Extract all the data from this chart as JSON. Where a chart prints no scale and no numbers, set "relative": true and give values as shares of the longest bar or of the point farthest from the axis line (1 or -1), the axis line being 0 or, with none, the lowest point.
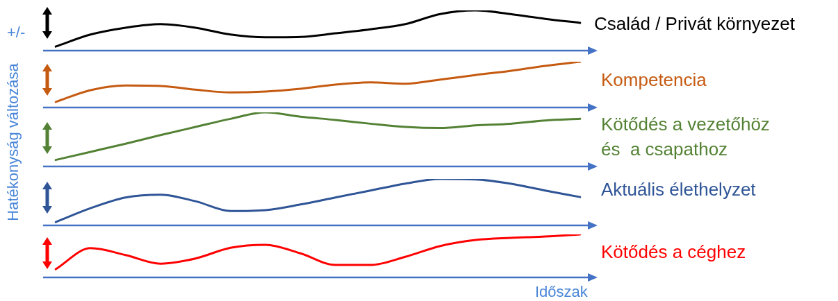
{
  "chart_data": [
    {
      "type": "line",
      "relative": true,
      "marker": "none",
      "ylabel": "Hatékonyság változása",
      "annotations": [
        "+/-"
      ],
      "categories": [
        null,
        null,
        null,
        null,
        null,
        null,
        null,
        null,
        null,
        null,
        null,
        null,
        null,
        null,
        null,
        null
      ],
      "series": [
        {
          "name": "Család / Privát környezet",
          "color": "#000000",
          "values": [
            0.1,
            0.4,
            0.57,
            0.66,
            0.57,
            0.4,
            0.33,
            0.34,
            0.43,
            0.53,
            0.66,
            0.91,
            1,
            0.91,
            0.79,
            0.69
          ]
        }
      ]
    },
    {
      "type": "line",
      "relative": true,
      "marker": "none",
      "categories": [
        null,
        null,
        null,
        null,
        null,
        null,
        null,
        null,
        null,
        null,
        null,
        null,
        null,
        null,
        null,
        null
      ],
      "series": [
        {
          "name": "Kompetencia",
          "color": "#c55a11",
          "values": [
            0.12,
            0.38,
            0.48,
            0.47,
            0.39,
            0.33,
            0.35,
            0.41,
            0.5,
            0.55,
            0.52,
            0.61,
            0.71,
            0.8,
            0.91,
            1
          ]
        }
      ]
    },
    {
      "type": "line",
      "relative": true,
      "marker": "none",
      "categories": [
        null,
        null,
        null,
        null,
        null,
        null,
        null,
        null,
        null,
        null,
        null,
        null,
        null,
        null,
        null,
        null
      ],
      "series": [
        {
          "name": "Kötődés a vezetőhöz\nés  a csapathoz",
          "color": "#548235",
          "values": [
            0.12,
            0.27,
            0.42,
            0.58,
            0.73,
            0.88,
            1,
            0.92,
            0.86,
            0.79,
            0.73,
            0.71,
            0.76,
            0.79,
            0.85,
            0.88
          ]
        }
      ]
    },
    {
      "type": "line",
      "relative": true,
      "marker": "none",
      "categories": [
        null,
        null,
        null,
        null,
        null,
        null,
        null,
        null,
        null,
        null,
        null,
        null,
        null,
        null,
        null,
        null
      ],
      "series": [
        {
          "name": "Aktuális élethelyzet",
          "color": "#2f5597",
          "values": [
            0.07,
            0.37,
            0.6,
            0.66,
            0.52,
            0.31,
            0.33,
            0.45,
            0.6,
            0.75,
            0.9,
            1,
            0.99,
            0.9,
            0.75,
            0.61
          ]
        }
      ]
    },
    {
      "type": "line",
      "relative": true,
      "marker": "none",
      "xlabel": "Időszak",
      "categories": [
        null,
        null,
        null,
        null,
        null,
        null,
        null,
        null,
        null,
        null,
        null,
        null,
        null,
        null,
        null,
        null
      ],
      "series": [
        {
          "name": "Kötődés a céghez",
          "color": "#ff0000",
          "values": [
            0.19,
            0.68,
            0.52,
            0.32,
            0.44,
            0.69,
            0.76,
            0.56,
            0.29,
            0.29,
            0.48,
            0.73,
            0.87,
            0.92,
            0.95,
            1
          ]
        }
      ]
    }
  ]
}
